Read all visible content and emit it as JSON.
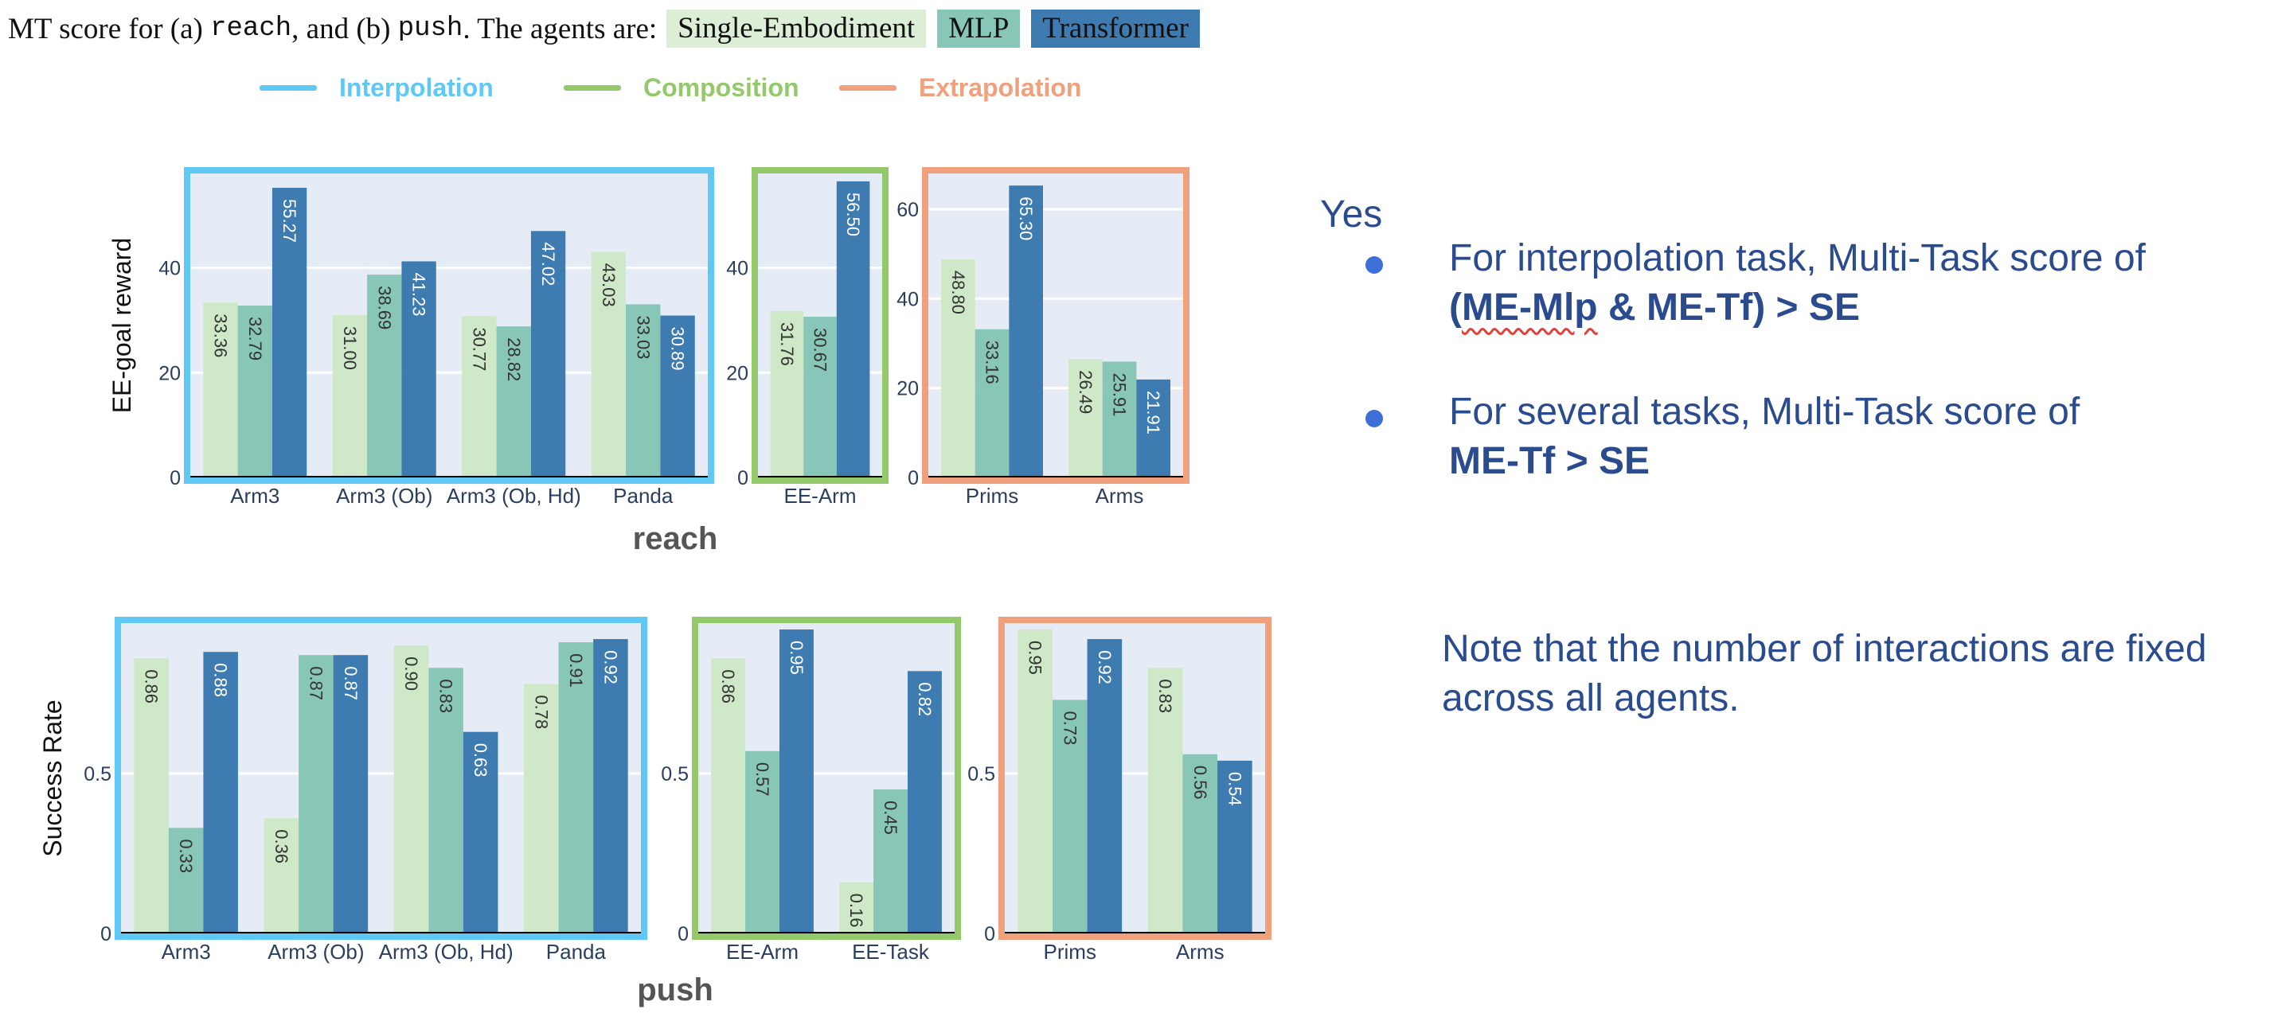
{
  "caption": {
    "prefix": "MT score for (a) ",
    "env_a": "reach",
    "middle": ", and (b) ",
    "env_b": "push",
    "suffix": ". The agents are:",
    "agents": [
      {
        "label": "Single-Embodiment",
        "color": "#cfe8c7"
      },
      {
        "label": "MLP",
        "color": "#88c6b8"
      },
      {
        "label": "Transformer",
        "color": "#3d7bb1"
      }
    ]
  },
  "legend": [
    {
      "label": "Interpolation",
      "color": "#5fc8f5"
    },
    {
      "label": "Composition",
      "color": "#94c96b"
    },
    {
      "label": "Extrapolation",
      "color": "#f1a07c"
    }
  ],
  "notes": {
    "heading": "Yes",
    "bullet1_line1": "For interpolation task, Multi-Task score of",
    "bullet1_open": "(",
    "bullet1_mlp": "ME-Mlp",
    "bullet1_rest": " & ME-Tf) > SE",
    "bullet2_line1": "For several tasks, Multi-Task score of",
    "bullet2_line2": "ME-Tf > SE",
    "note_line1": "Note that the number of interactions are fixed",
    "note_line2": "across all agents."
  },
  "chart_data": [
    {
      "type": "bar",
      "env": "reach",
      "group": "Interpolation",
      "ylabel": "EE-goal reward",
      "ylim": [
        0,
        58
      ],
      "yticks": [
        0,
        20,
        40
      ],
      "categories": [
        "Arm3",
        "Arm3 (Ob)",
        "Arm3 (Ob, Hd)",
        "Panda"
      ],
      "series": [
        {
          "name": "Single-Embodiment",
          "values": [
            33.36,
            31.0,
            30.77,
            43.03
          ]
        },
        {
          "name": "MLP",
          "values": [
            32.79,
            38.69,
            28.82,
            33.03
          ]
        },
        {
          "name": "Transformer",
          "values": [
            55.27,
            41.23,
            47.02,
            30.89
          ]
        }
      ]
    },
    {
      "type": "bar",
      "env": "reach",
      "group": "Composition",
      "ylim": [
        0,
        58
      ],
      "yticks": [
        0,
        20,
        40
      ],
      "categories": [
        "EE-Arm"
      ],
      "series": [
        {
          "name": "Single-Embodiment",
          "values": [
            31.76
          ]
        },
        {
          "name": "MLP",
          "values": [
            30.67
          ]
        },
        {
          "name": "Transformer",
          "values": [
            56.5
          ]
        }
      ]
    },
    {
      "type": "bar",
      "env": "reach",
      "group": "Extrapolation",
      "ylim": [
        0,
        68
      ],
      "yticks": [
        0,
        20,
        40,
        60
      ],
      "categories": [
        "Prims",
        "Arms"
      ],
      "series": [
        {
          "name": "Single-Embodiment",
          "values": [
            48.8,
            26.49
          ]
        },
        {
          "name": "MLP",
          "values": [
            33.16,
            25.91
          ]
        },
        {
          "name": "Transformer",
          "values": [
            65.3,
            21.91
          ]
        }
      ]
    },
    {
      "type": "bar",
      "env": "push",
      "group": "Interpolation",
      "ylabel": "Success Rate",
      "ylim": [
        0,
        0.97
      ],
      "yticks": [
        0,
        0.5
      ],
      "categories": [
        "Arm3",
        "Arm3 (Ob)",
        "Arm3 (Ob, Hd)",
        "Panda"
      ],
      "series": [
        {
          "name": "Single-Embodiment",
          "values": [
            0.86,
            0.36,
            0.9,
            0.78
          ]
        },
        {
          "name": "MLP",
          "values": [
            0.33,
            0.87,
            0.83,
            0.91
          ]
        },
        {
          "name": "Transformer",
          "values": [
            0.88,
            0.87,
            0.63,
            0.92
          ]
        }
      ]
    },
    {
      "type": "bar",
      "env": "push",
      "group": "Composition",
      "ylim": [
        0,
        0.97
      ],
      "yticks": [
        0,
        0.5
      ],
      "categories": [
        "EE-Arm",
        "EE-Task"
      ],
      "series": [
        {
          "name": "Single-Embodiment",
          "values": [
            0.86,
            0.16
          ]
        },
        {
          "name": "MLP",
          "values": [
            0.57,
            0.45
          ]
        },
        {
          "name": "Transformer",
          "values": [
            0.95,
            0.82
          ]
        }
      ]
    },
    {
      "type": "bar",
      "env": "push",
      "group": "Extrapolation",
      "ylim": [
        0,
        0.97
      ],
      "yticks": [
        0,
        0.5
      ],
      "categories": [
        "Prims",
        "Arms"
      ],
      "series": [
        {
          "name": "Single-Embodiment",
          "values": [
            0.95,
            0.83
          ]
        },
        {
          "name": "MLP",
          "values": [
            0.73,
            0.56
          ]
        },
        {
          "name": "Transformer",
          "values": [
            0.92,
            0.54
          ]
        }
      ]
    }
  ]
}
